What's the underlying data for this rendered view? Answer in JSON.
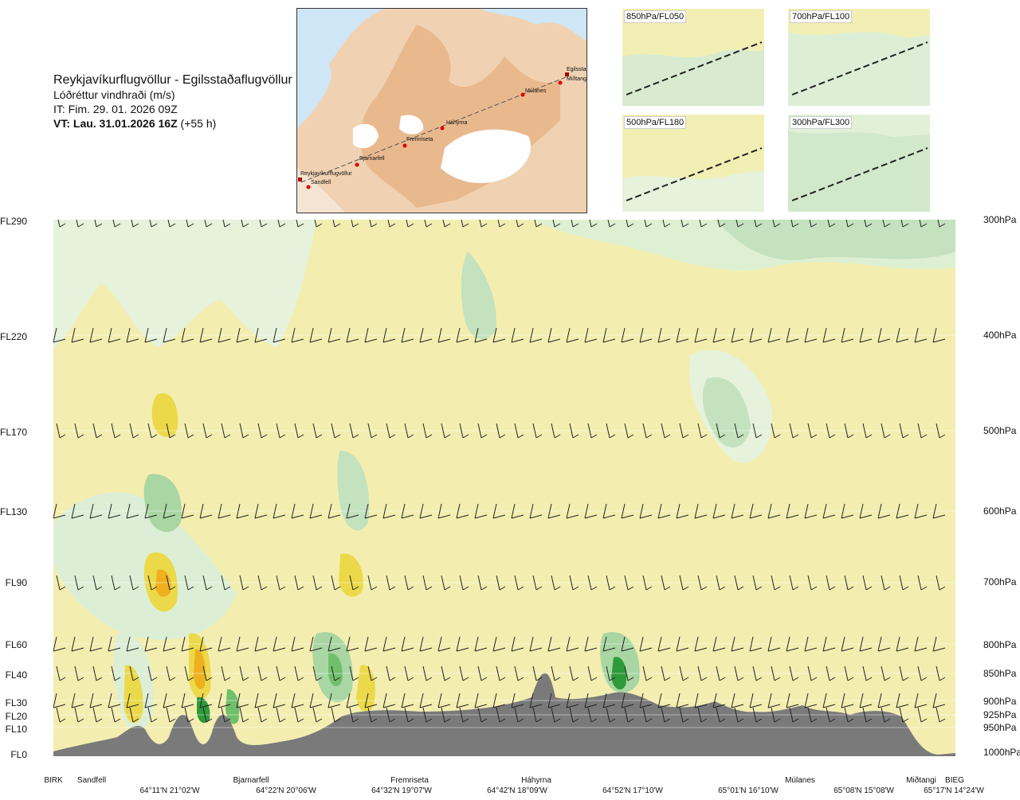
{
  "header": {
    "title": "Reykjavíkurflugvöllur - Egilsstaðaflugvöllur",
    "subtitle": "Lóðréttur vindhraði (m/s)",
    "it": "IT: Fim. 29. 01. 2026 09Z",
    "vt_bold": "VT: Lau. 31.01.2026 16Z",
    "vt_offset": "(+55 h)"
  },
  "map": {
    "labels": [
      "Egilsstaðaflugvöllur",
      "Miðtangi",
      "Múlanes",
      "Háhyrna",
      "Fremriseta",
      "Bjarnarfell",
      "Reykjavíkurflugvöllur",
      "Sandfell"
    ]
  },
  "thumbnails": [
    {
      "label": "850hPa/FL050"
    },
    {
      "label": "700hPa/FL100"
    },
    {
      "label": "500hPa/FL180"
    },
    {
      "label": "300hPa/FL300"
    }
  ],
  "levels": [
    {
      "fl": "FL290",
      "hpa": "300hPa"
    },
    {
      "fl": "FL220",
      "hpa": "400hPa"
    },
    {
      "fl": "FL170",
      "hpa": "500hPa"
    },
    {
      "fl": "FL130",
      "hpa": "600hPa"
    },
    {
      "fl": "FL90",
      "hpa": "700hPa"
    },
    {
      "fl": "FL60",
      "hpa": "800hPa"
    },
    {
      "fl": "FL40",
      "hpa": "850hPa"
    },
    {
      "fl": "FL30",
      "hpa": "900hPa"
    },
    {
      "fl": "FL20",
      "hpa": "925hPa"
    },
    {
      "fl": "FL10",
      "hpa": "950hPa"
    },
    {
      "fl": "FL0",
      "hpa": "1000hPa"
    }
  ],
  "waypoints": [
    "BIRK",
    "Sandfell",
    "Bjarnarfell",
    "Fremriseta",
    "Háhyrna",
    "Múlanes",
    "Miðtangi",
    "BIEG"
  ],
  "coordinates": [
    "64°11'N 21°02'W",
    "64°22'N 20°06'W",
    "64°32'N 19°07'W",
    "64°42'N 18°09'W",
    "64°52'N 17°10'W",
    "65°01'N 16°10'W",
    "65°08'N 15°08'W",
    "65°17'N 14°24'W"
  ],
  "colors": {
    "background_field": "#f3eeb0",
    "light_green": "#dcefd6",
    "mid_green": "#a9d6a3",
    "dark_green": "#2e9a3a",
    "yellow": "#ecd94a",
    "orange": "#efb020",
    "terrain": "#7a7a7a"
  }
}
